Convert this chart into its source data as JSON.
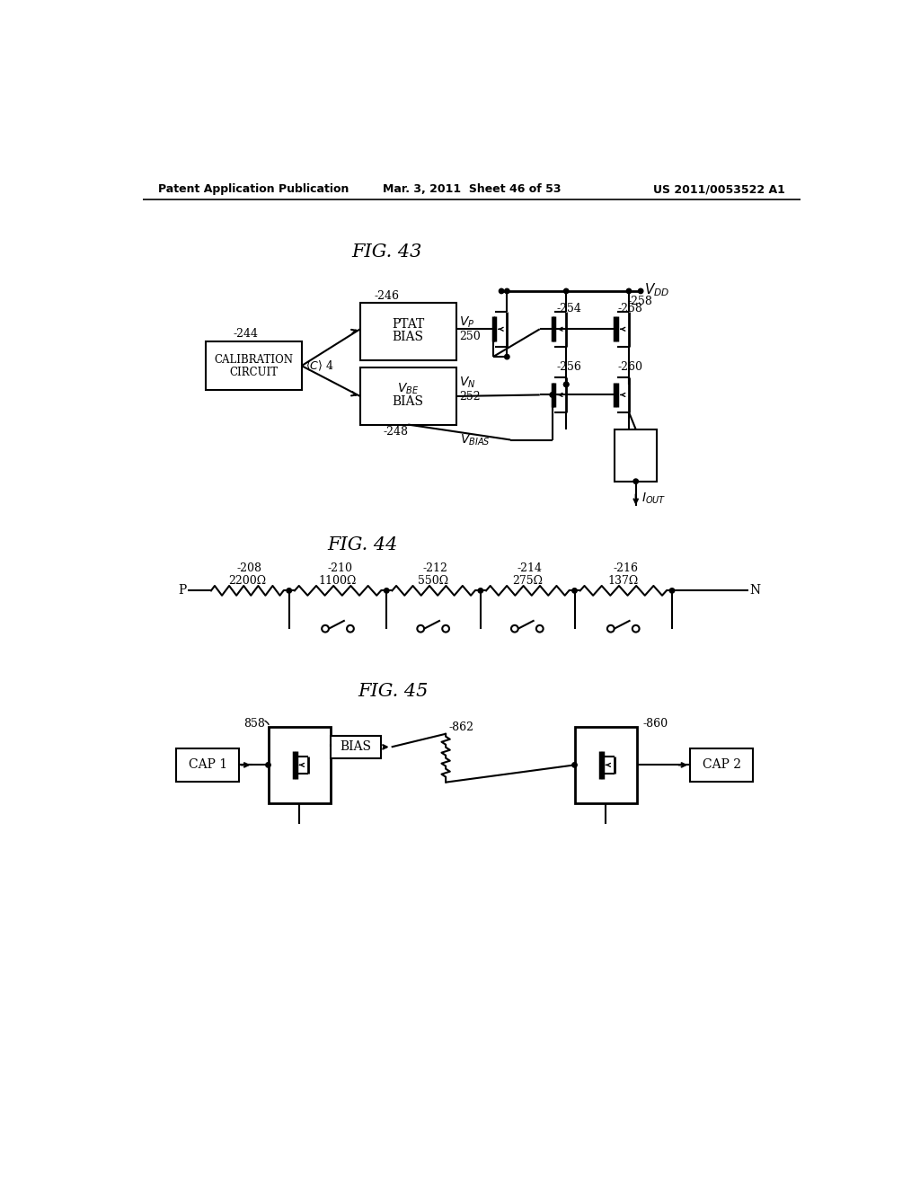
{
  "bg_color": "#ffffff",
  "header_left": "Patent Application Publication",
  "header_mid": "Mar. 3, 2011  Sheet 46 of 53",
  "header_right": "US 2011/0053522 A1",
  "fig43_title": "FIG. 43",
  "fig44_title": "FIG. 44",
  "fig45_title": "FIG. 45",
  "fig43_labels": {
    "vdd": "V_DD",
    "calib": [
      "CALIBRATION",
      "CIRCUIT"
    ],
    "ptat": [
      "PTAT",
      "BIAS"
    ],
    "vbe": [
      "V_BE",
      "BIAS"
    ],
    "vp": "V_P",
    "vn": "V_N",
    "vbias": "V_BIAS",
    "iout": "I_OUT",
    "n244": "-244",
    "n246": "-246",
    "n248": "-248",
    "n250": "250",
    "n252": "252",
    "n254": "-254",
    "n256": "-256",
    "n258": "-258",
    "n260": "-260",
    "c4": "<C> 4"
  },
  "fig44_labels": {
    "p": "P",
    "n": "N",
    "r208": "2200Ω",
    "r210": "1100Ω",
    "r212": "550Ω",
    "r214": "275Ω",
    "r216": "137Ω",
    "n208": "-208",
    "n210": "-210",
    "n212": "-212",
    "n214": "-214",
    "n216": "-216"
  },
  "fig45_labels": {
    "cap1": "CAP 1",
    "cap2": "CAP 2",
    "bias": "BIAS",
    "n858": "858",
    "n860": "-860",
    "n862": "-862"
  }
}
